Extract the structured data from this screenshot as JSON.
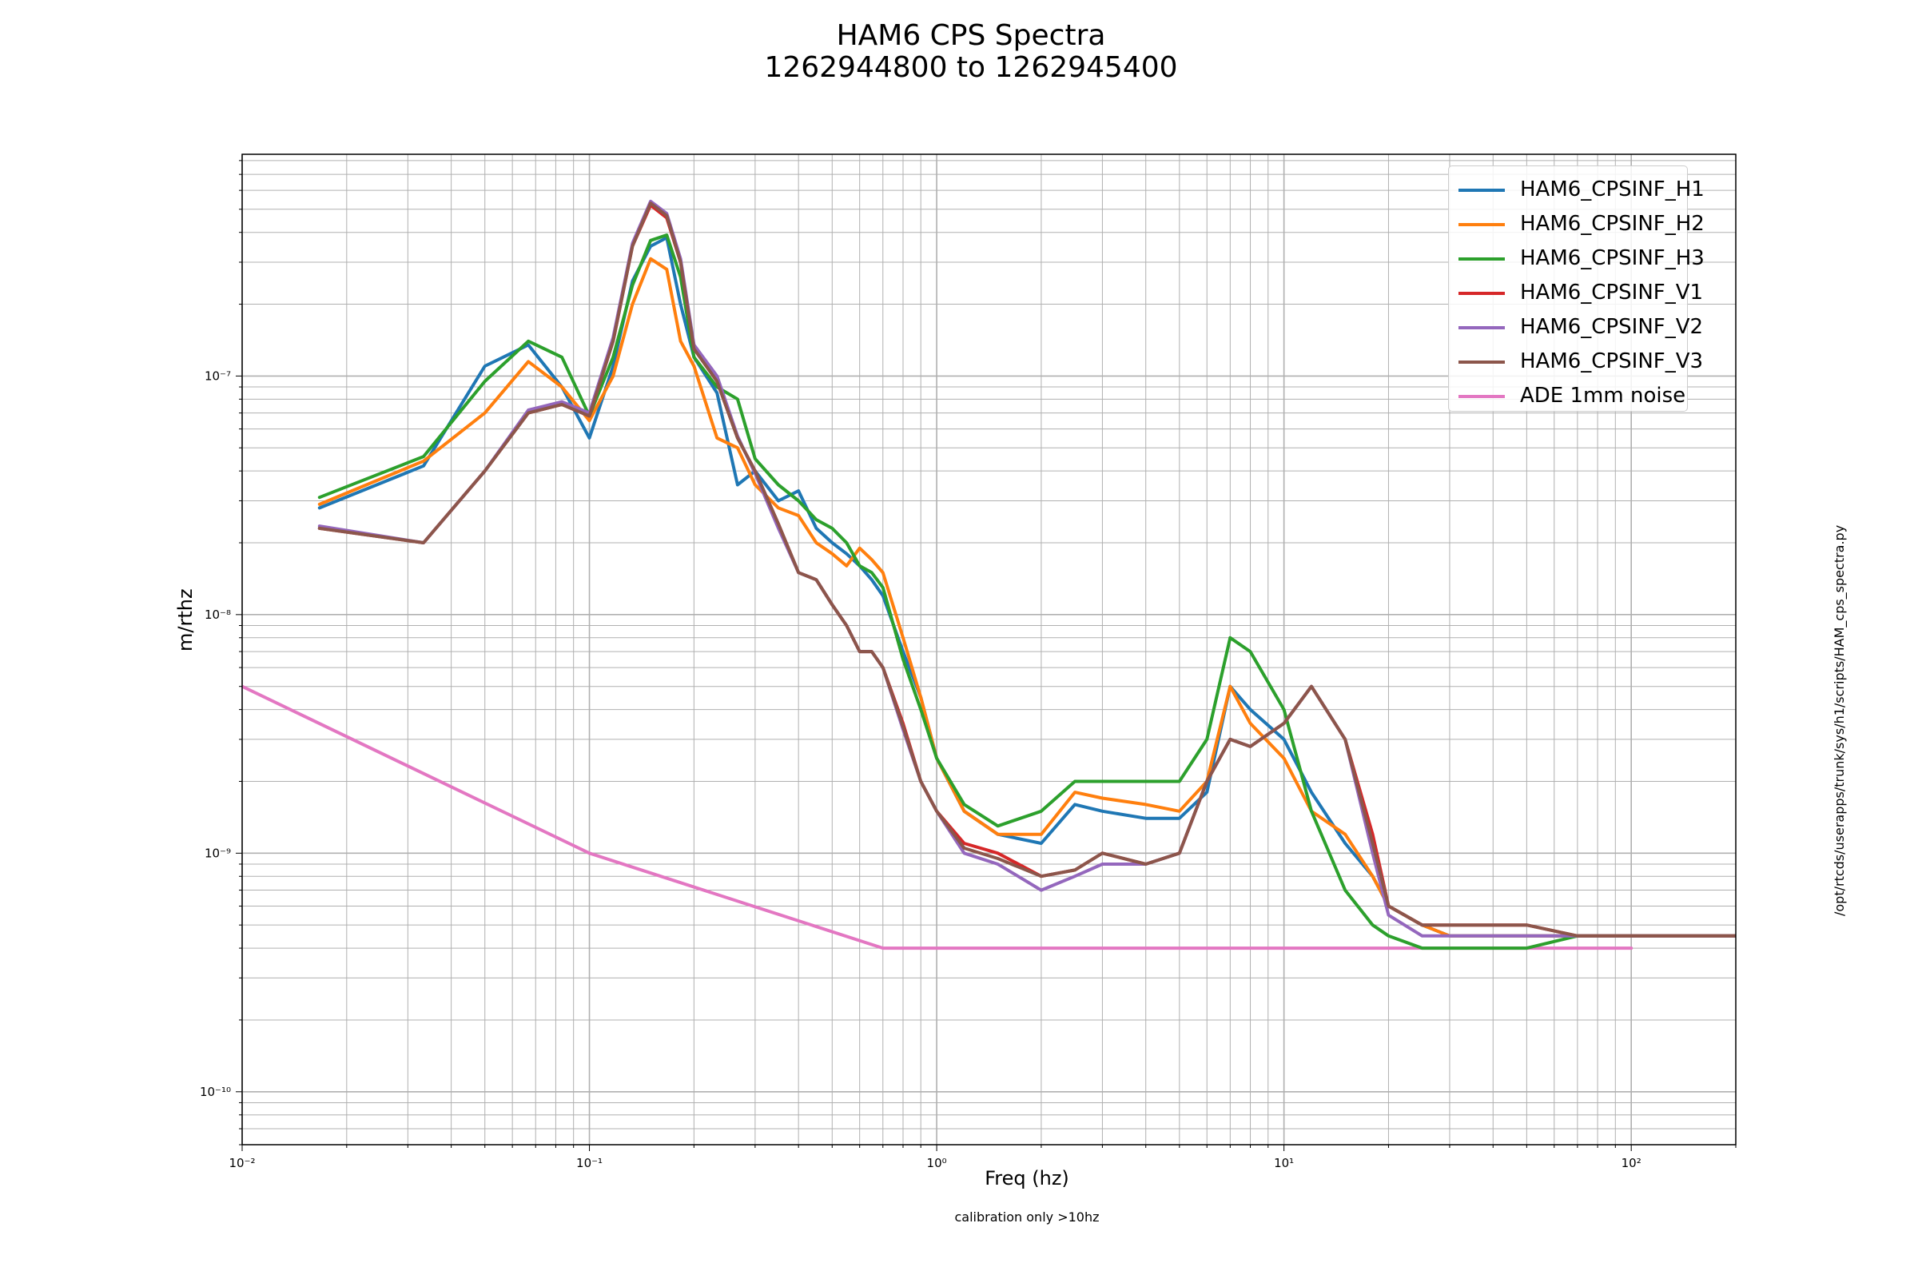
{
  "title_line1": "HAM6 CPS Spectra",
  "title_line2": "1262944800 to 1262945400",
  "footnote": "calibration only >10hz",
  "side_text": "/opt/rtcds/userapps/trunk/sys/h1/scripts/HAM_cps_spectra.py",
  "chart_data": {
    "type": "line",
    "title": "HAM6 CPS Spectra\n1262944800 to 1262945400",
    "xlabel": "Freq (hz)",
    "ylabel": "m/rthz",
    "xscale": "log",
    "yscale": "log",
    "xlim": [
      0.01,
      200
    ],
    "ylim": [
      6e-11,
      8.5e-07
    ],
    "grid": true,
    "legend_position": "top-right",
    "x_ticks": [
      {
        "value": 0.01,
        "label": "10⁻²"
      },
      {
        "value": 0.1,
        "label": "10⁻¹"
      },
      {
        "value": 1,
        "label": "10⁰"
      },
      {
        "value": 10,
        "label": "10¹"
      },
      {
        "value": 100,
        "label": "10²"
      }
    ],
    "y_ticks": [
      {
        "value": 1e-10,
        "label": "10⁻¹⁰"
      },
      {
        "value": 1e-09,
        "label": "10⁻⁹"
      },
      {
        "value": 1e-08,
        "label": "10⁻⁸"
      },
      {
        "value": 1e-07,
        "label": "10⁻⁷"
      }
    ],
    "series": [
      {
        "name": "HAM6_CPSINF_H1",
        "color": "#1f77b4",
        "x": [
          0.0167,
          0.0333,
          0.05,
          0.0667,
          0.0833,
          0.1,
          0.117,
          0.133,
          0.15,
          0.167,
          0.183,
          0.2,
          0.233,
          0.267,
          0.3,
          0.35,
          0.4,
          0.45,
          0.5,
          0.55,
          0.6,
          0.65,
          0.7,
          0.8,
          0.9,
          1.0,
          1.2,
          1.5,
          2.0,
          2.5,
          3,
          4,
          5,
          6,
          7,
          8,
          10,
          12,
          15,
          18,
          20,
          25,
          30,
          40,
          50,
          70,
          100,
          150,
          200
        ],
        "y": [
          2.8e-08,
          4.2e-08,
          1.1e-07,
          1.35e-07,
          9e-08,
          5.5e-08,
          1.1e-07,
          2.5e-07,
          3.5e-07,
          3.8e-07,
          2e-07,
          1.2e-07,
          8.5e-08,
          3.5e-08,
          4e-08,
          3e-08,
          3.3e-08,
          2.3e-08,
          2e-08,
          1.8e-08,
          1.6e-08,
          1.4e-08,
          1.2e-08,
          7e-09,
          4.5e-09,
          2.5e-09,
          1.5e-09,
          1.2e-09,
          1.1e-09,
          1.6e-09,
          1.5e-09,
          1.4e-09,
          1.4e-09,
          1.8e-09,
          5e-09,
          4e-09,
          3e-09,
          1.8e-09,
          1.1e-09,
          8e-10,
          6e-10,
          5e-10,
          4.5e-10,
          4.5e-10,
          4.5e-10,
          4.5e-10,
          4.5e-10,
          4.5e-10,
          4.5e-10
        ]
      },
      {
        "name": "HAM6_CPSINF_H2",
        "color": "#ff7f0e",
        "x": [
          0.0167,
          0.0333,
          0.05,
          0.0667,
          0.0833,
          0.1,
          0.117,
          0.133,
          0.15,
          0.167,
          0.183,
          0.2,
          0.233,
          0.267,
          0.3,
          0.35,
          0.4,
          0.45,
          0.5,
          0.55,
          0.6,
          0.65,
          0.7,
          0.8,
          0.9,
          1.0,
          1.2,
          1.5,
          2.0,
          2.5,
          3,
          4,
          5,
          6,
          7,
          8,
          10,
          12,
          15,
          18,
          20,
          25,
          30,
          40,
          50,
          70,
          100,
          150,
          200
        ],
        "y": [
          2.9e-08,
          4.4e-08,
          7e-08,
          1.15e-07,
          9e-08,
          6.5e-08,
          1e-07,
          2e-07,
          3.1e-07,
          2.8e-07,
          1.4e-07,
          1.1e-07,
          5.5e-08,
          5e-08,
          3.5e-08,
          2.8e-08,
          2.6e-08,
          2e-08,
          1.8e-08,
          1.6e-08,
          1.9e-08,
          1.7e-08,
          1.5e-08,
          8e-09,
          4.5e-09,
          2.5e-09,
          1.5e-09,
          1.2e-09,
          1.2e-09,
          1.8e-09,
          1.7e-09,
          1.6e-09,
          1.5e-09,
          2e-09,
          5e-09,
          3.5e-09,
          2.5e-09,
          1.5e-09,
          1.2e-09,
          8e-10,
          6e-10,
          5e-10,
          4.5e-10,
          4.5e-10,
          4.5e-10,
          4.5e-10,
          4.5e-10,
          4.5e-10,
          4.5e-10
        ]
      },
      {
        "name": "HAM6_CPSINF_H3",
        "color": "#2ca02c",
        "x": [
          0.0167,
          0.0333,
          0.05,
          0.0667,
          0.0833,
          0.1,
          0.117,
          0.133,
          0.15,
          0.167,
          0.183,
          0.2,
          0.233,
          0.267,
          0.3,
          0.35,
          0.4,
          0.45,
          0.5,
          0.55,
          0.6,
          0.65,
          0.7,
          0.8,
          0.9,
          1.0,
          1.2,
          1.5,
          2.0,
          2.5,
          3,
          4,
          5,
          6,
          7,
          8,
          10,
          12,
          15,
          18,
          20,
          25,
          30,
          40,
          50,
          70,
          100,
          150,
          200
        ],
        "y": [
          3.1e-08,
          4.6e-08,
          9.5e-08,
          1.4e-07,
          1.2e-07,
          6.8e-08,
          1.2e-07,
          2.4e-07,
          3.7e-07,
          3.9e-07,
          2.6e-07,
          1.2e-07,
          9e-08,
          8e-08,
          4.5e-08,
          3.5e-08,
          3e-08,
          2.5e-08,
          2.3e-08,
          2e-08,
          1.6e-08,
          1.5e-08,
          1.3e-08,
          6.5e-09,
          4e-09,
          2.5e-09,
          1.6e-09,
          1.3e-09,
          1.5e-09,
          2e-09,
          2e-09,
          2e-09,
          2e-09,
          3e-09,
          8e-09,
          7e-09,
          4e-09,
          1.5e-09,
          7e-10,
          5e-10,
          4.5e-10,
          4e-10,
          4e-10,
          4e-10,
          4e-10,
          4.5e-10,
          4.5e-10,
          4.5e-10,
          4.5e-10
        ]
      },
      {
        "name": "HAM6_CPSINF_V1",
        "color": "#d62728",
        "x": [
          0.0167,
          0.0333,
          0.05,
          0.0667,
          0.0833,
          0.1,
          0.117,
          0.133,
          0.15,
          0.167,
          0.183,
          0.2,
          0.233,
          0.267,
          0.3,
          0.35,
          0.4,
          0.45,
          0.5,
          0.55,
          0.6,
          0.65,
          0.7,
          0.8,
          0.9,
          1.0,
          1.2,
          1.5,
          2.0,
          2.5,
          3,
          4,
          5,
          6,
          7,
          8,
          10,
          12,
          15,
          18,
          20,
          25,
          30,
          40,
          50,
          70,
          100,
          150,
          200
        ],
        "y": [
          2.3e-08,
          2e-08,
          4e-08,
          7e-08,
          7.6e-08,
          6.8e-08,
          1.4e-07,
          3.5e-07,
          5.2e-07,
          4.6e-07,
          3e-07,
          1.3e-07,
          9.5e-08,
          5.5e-08,
          4e-08,
          2.4e-08,
          1.5e-08,
          1.4e-08,
          1.1e-08,
          9e-09,
          7e-09,
          7e-09,
          6e-09,
          3.5e-09,
          2e-09,
          1.5e-09,
          1.1e-09,
          1e-09,
          8e-10,
          8.5e-10,
          1e-09,
          9e-10,
          1e-09,
          2e-09,
          3e-09,
          2.8e-09,
          3.5e-09,
          5e-09,
          3e-09,
          1.2e-09,
          6e-10,
          5e-10,
          5e-10,
          5e-10,
          5e-10,
          4.5e-10,
          4.5e-10,
          4.5e-10,
          4.5e-10
        ]
      },
      {
        "name": "HAM6_CPSINF_V2",
        "color": "#9467bd",
        "x": [
          0.0167,
          0.0333,
          0.05,
          0.0667,
          0.0833,
          0.1,
          0.117,
          0.133,
          0.15,
          0.167,
          0.183,
          0.2,
          0.233,
          0.267,
          0.3,
          0.35,
          0.4,
          0.45,
          0.5,
          0.55,
          0.6,
          0.65,
          0.7,
          0.8,
          0.9,
          1.0,
          1.2,
          1.5,
          2.0,
          2.5,
          3,
          4,
          5,
          6,
          7,
          8,
          10,
          12,
          15,
          18,
          20,
          25,
          30,
          40,
          50,
          70,
          100,
          150,
          200
        ],
        "y": [
          2.35e-08,
          2e-08,
          4e-08,
          7.2e-08,
          7.8e-08,
          7e-08,
          1.45e-07,
          3.6e-07,
          5.4e-07,
          4.8e-07,
          3.1e-07,
          1.35e-07,
          1e-07,
          5.6e-08,
          3.9e-08,
          2.3e-08,
          1.5e-08,
          1.4e-08,
          1.1e-08,
          9e-09,
          7e-09,
          7e-09,
          6e-09,
          3.3e-09,
          2e-09,
          1.5e-09,
          1e-09,
          9e-10,
          7e-10,
          8e-10,
          9e-10,
          9e-10,
          1e-09,
          2e-09,
          3e-09,
          2.8e-09,
          3.5e-09,
          5e-09,
          3e-09,
          1e-09,
          5.5e-10,
          4.5e-10,
          4.5e-10,
          4.5e-10,
          4.5e-10,
          4.5e-10,
          4.5e-10,
          4.5e-10,
          4.5e-10
        ]
      },
      {
        "name": "HAM6_CPSINF_V3",
        "color": "#8c564b",
        "x": [
          0.0167,
          0.0333,
          0.05,
          0.0667,
          0.0833,
          0.1,
          0.117,
          0.133,
          0.15,
          0.167,
          0.183,
          0.2,
          0.233,
          0.267,
          0.3,
          0.35,
          0.4,
          0.45,
          0.5,
          0.55,
          0.6,
          0.65,
          0.7,
          0.8,
          0.9,
          1.0,
          1.2,
          1.5,
          2.0,
          2.5,
          3,
          4,
          5,
          6,
          7,
          8,
          10,
          12,
          15,
          18,
          20,
          25,
          30,
          40,
          50,
          70,
          100,
          150,
          200
        ],
        "y": [
          2.3e-08,
          2e-08,
          4e-08,
          7e-08,
          7.6e-08,
          6.8e-08,
          1.4e-07,
          3.5e-07,
          5.3e-07,
          4.7e-07,
          3e-07,
          1.3e-07,
          9.5e-08,
          5.5e-08,
          4e-08,
          2.4e-08,
          1.5e-08,
          1.4e-08,
          1.1e-08,
          9e-09,
          7e-09,
          7e-09,
          6e-09,
          3.4e-09,
          2e-09,
          1.5e-09,
          1.05e-09,
          9.5e-10,
          8e-10,
          8.5e-10,
          1e-09,
          9e-10,
          1e-09,
          2e-09,
          3e-09,
          2.8e-09,
          3.5e-09,
          5e-09,
          3e-09,
          1.1e-09,
          6e-10,
          5e-10,
          5e-10,
          5e-10,
          5e-10,
          4.5e-10,
          4.5e-10,
          4.5e-10,
          4.5e-10
        ]
      },
      {
        "name": "ADE 1mm noise",
        "color": "#e377c2",
        "x": [
          0.01,
          0.1,
          0.7,
          100
        ],
        "y": [
          5e-09,
          1e-09,
          4e-10,
          4e-10
        ]
      }
    ]
  }
}
